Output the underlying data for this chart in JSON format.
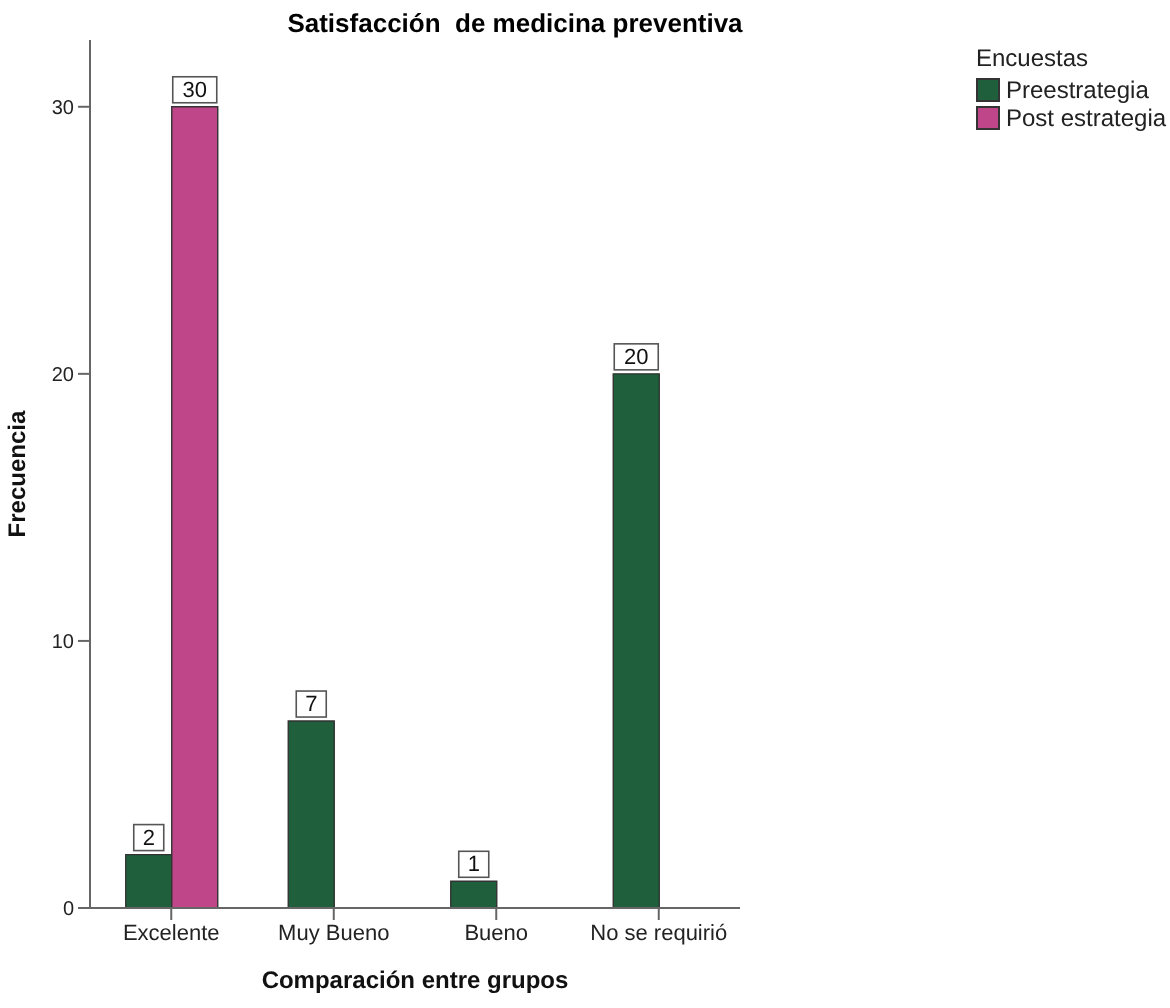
{
  "chart_data": {
    "type": "bar",
    "title": "Satisfacción  de medicina preventiva",
    "xlabel": "Comparación entre grupos",
    "ylabel": "Frecuencia",
    "legend_title": "Encuestas",
    "legend": "top right",
    "grid": false,
    "categories": [
      "Excelente",
      "Muy Bueno",
      "Bueno",
      "No se requirió"
    ],
    "ylim": [
      0,
      32.5
    ],
    "yticks": [
      0,
      10,
      20,
      30
    ],
    "series": [
      {
        "name": "Preestrategia",
        "color": "#1f5f3b",
        "values": [
          2,
          7,
          1,
          20
        ],
        "value_labels": [
          "2",
          "7",
          "1",
          "20"
        ]
      },
      {
        "name": "Post estrategia",
        "color": "#c0468a",
        "values": [
          30,
          null,
          null,
          null
        ],
        "value_labels": [
          "30",
          null,
          null,
          null
        ]
      }
    ]
  }
}
